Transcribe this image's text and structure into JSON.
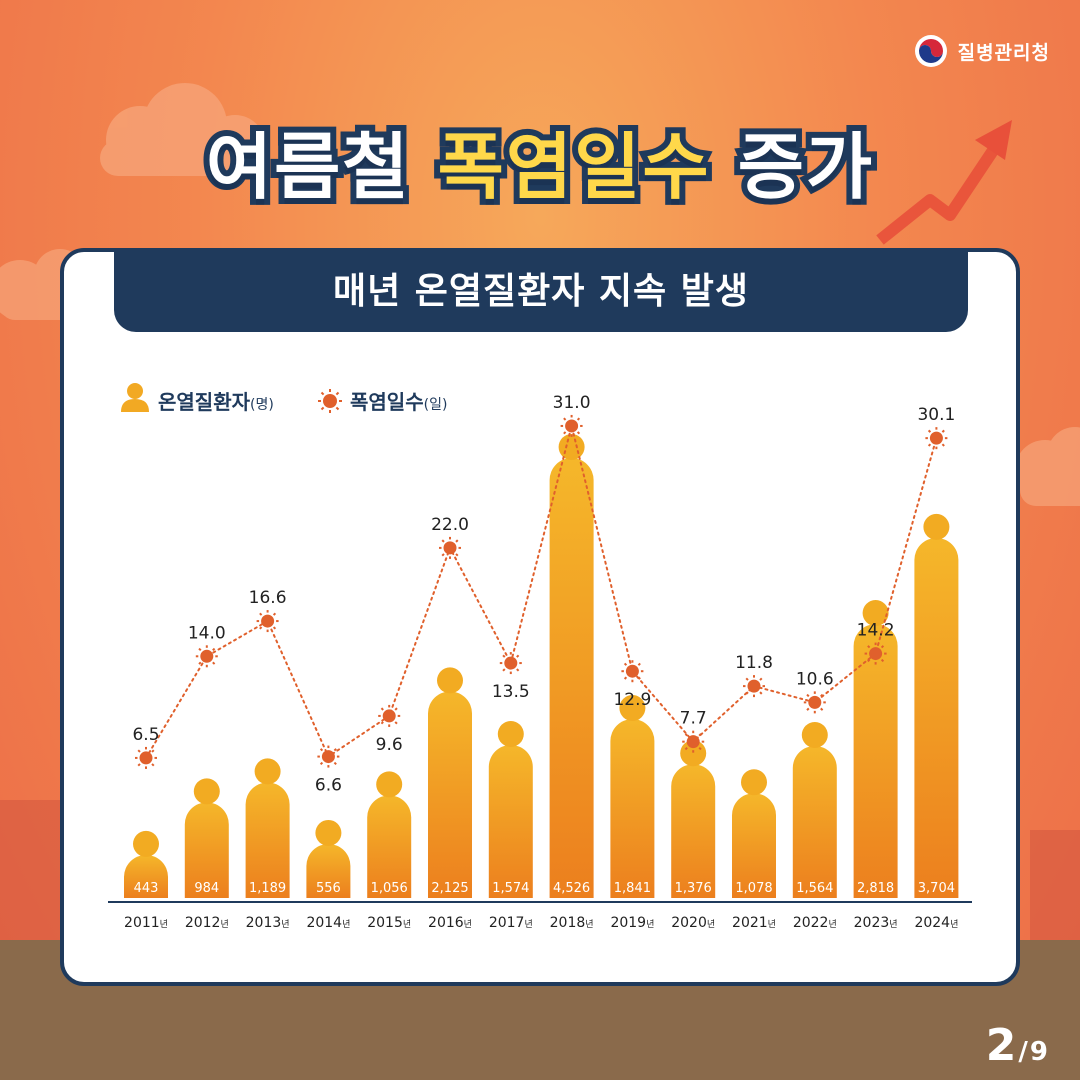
{
  "header": {
    "logo": "질병관리청",
    "title_part1": "여름철",
    "title_part2": "폭염일수",
    "title_part3": "증가"
  },
  "banner": "매년 온열질환자 지속 발생",
  "legend": {
    "patients": "온열질환자",
    "patients_unit": "(명)",
    "heatdays": "폭염일수",
    "heatdays_unit": "(일)"
  },
  "colors": {
    "navy": "#1f3a5c",
    "bar_top": "#f5b72a",
    "bar_bottom": "#ec7f1e",
    "sun": "#e0602c",
    "line": "#e0602c",
    "title_highlight": "#ffd84a"
  },
  "icons": [
    "person-icon",
    "sun-icon",
    "korea-government-logo-icon",
    "trend-arrow-icon"
  ],
  "chart_data": {
    "type": "bar",
    "year_suffix": "년",
    "categories": [
      "2011",
      "2012",
      "2013",
      "2014",
      "2015",
      "2016",
      "2017",
      "2018",
      "2019",
      "2020",
      "2021",
      "2022",
      "2023",
      "2024"
    ],
    "series": [
      {
        "name": "온열질환자(명)",
        "type": "bar",
        "values": [
          443,
          984,
          1189,
          556,
          1056,
          2125,
          1574,
          4526,
          1841,
          1376,
          1078,
          1564,
          2818,
          3704
        ],
        "labels": [
          "443",
          "984",
          "1,189",
          "556",
          "1,056",
          "2,125",
          "1,574",
          "4,526",
          "1,841",
          "1,376",
          "1,078",
          "1,564",
          "2,818",
          "3,704"
        ]
      },
      {
        "name": "폭염일수(일)",
        "type": "line",
        "values": [
          6.5,
          14.0,
          16.6,
          6.6,
          9.6,
          22.0,
          13.5,
          31.0,
          12.9,
          7.7,
          11.8,
          10.6,
          14.2,
          30.1
        ],
        "labels": [
          "6.5",
          "14.0",
          "16.6",
          "6.6",
          "9.6",
          "22.0",
          "13.5",
          "31.0",
          "12.9",
          "7.7",
          "11.8",
          "10.6",
          "14.2",
          "30.1"
        ]
      }
    ],
    "grid": false,
    "legend_position": "top-left"
  },
  "page": {
    "current": "2",
    "separator": "/",
    "total": "9"
  }
}
